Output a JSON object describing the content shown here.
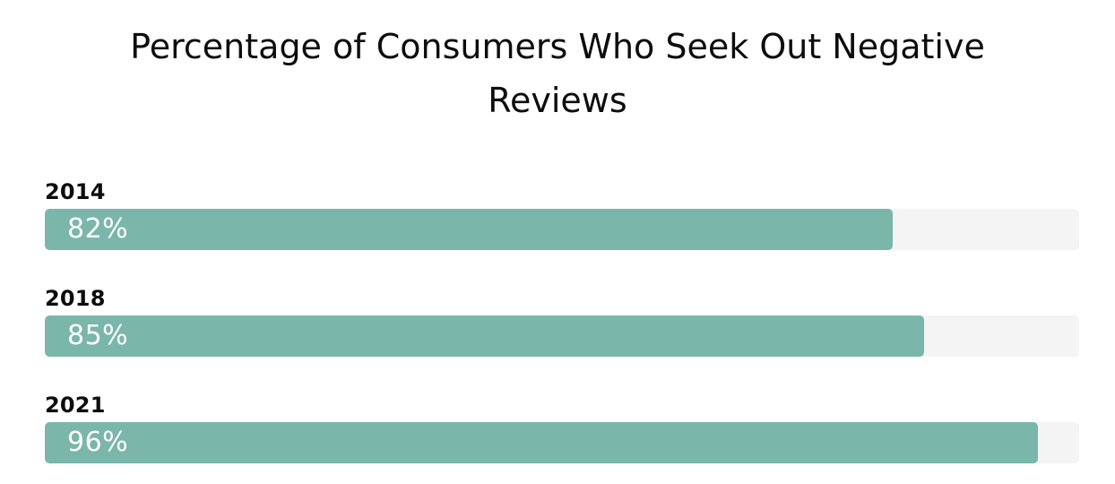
{
  "chart_data": {
    "type": "bar",
    "orientation": "horizontal",
    "title": "Percentage of Consumers Who Seek Out Negative Reviews",
    "categories": [
      "2014",
      "2018",
      "2021"
    ],
    "values": [
      82,
      85,
      96
    ],
    "value_labels": [
      "82%",
      "85%",
      "96%"
    ],
    "xlim": [
      0,
      100
    ],
    "grid": false,
    "legend": false,
    "colors": {
      "bar_fill": "#7bb6ab",
      "bar_track": "#f4f4f4",
      "title_text": "#0d0d0d",
      "category_text": "#0d0d0d",
      "value_text": "#ffffff",
      "background": "#ffffff"
    }
  }
}
